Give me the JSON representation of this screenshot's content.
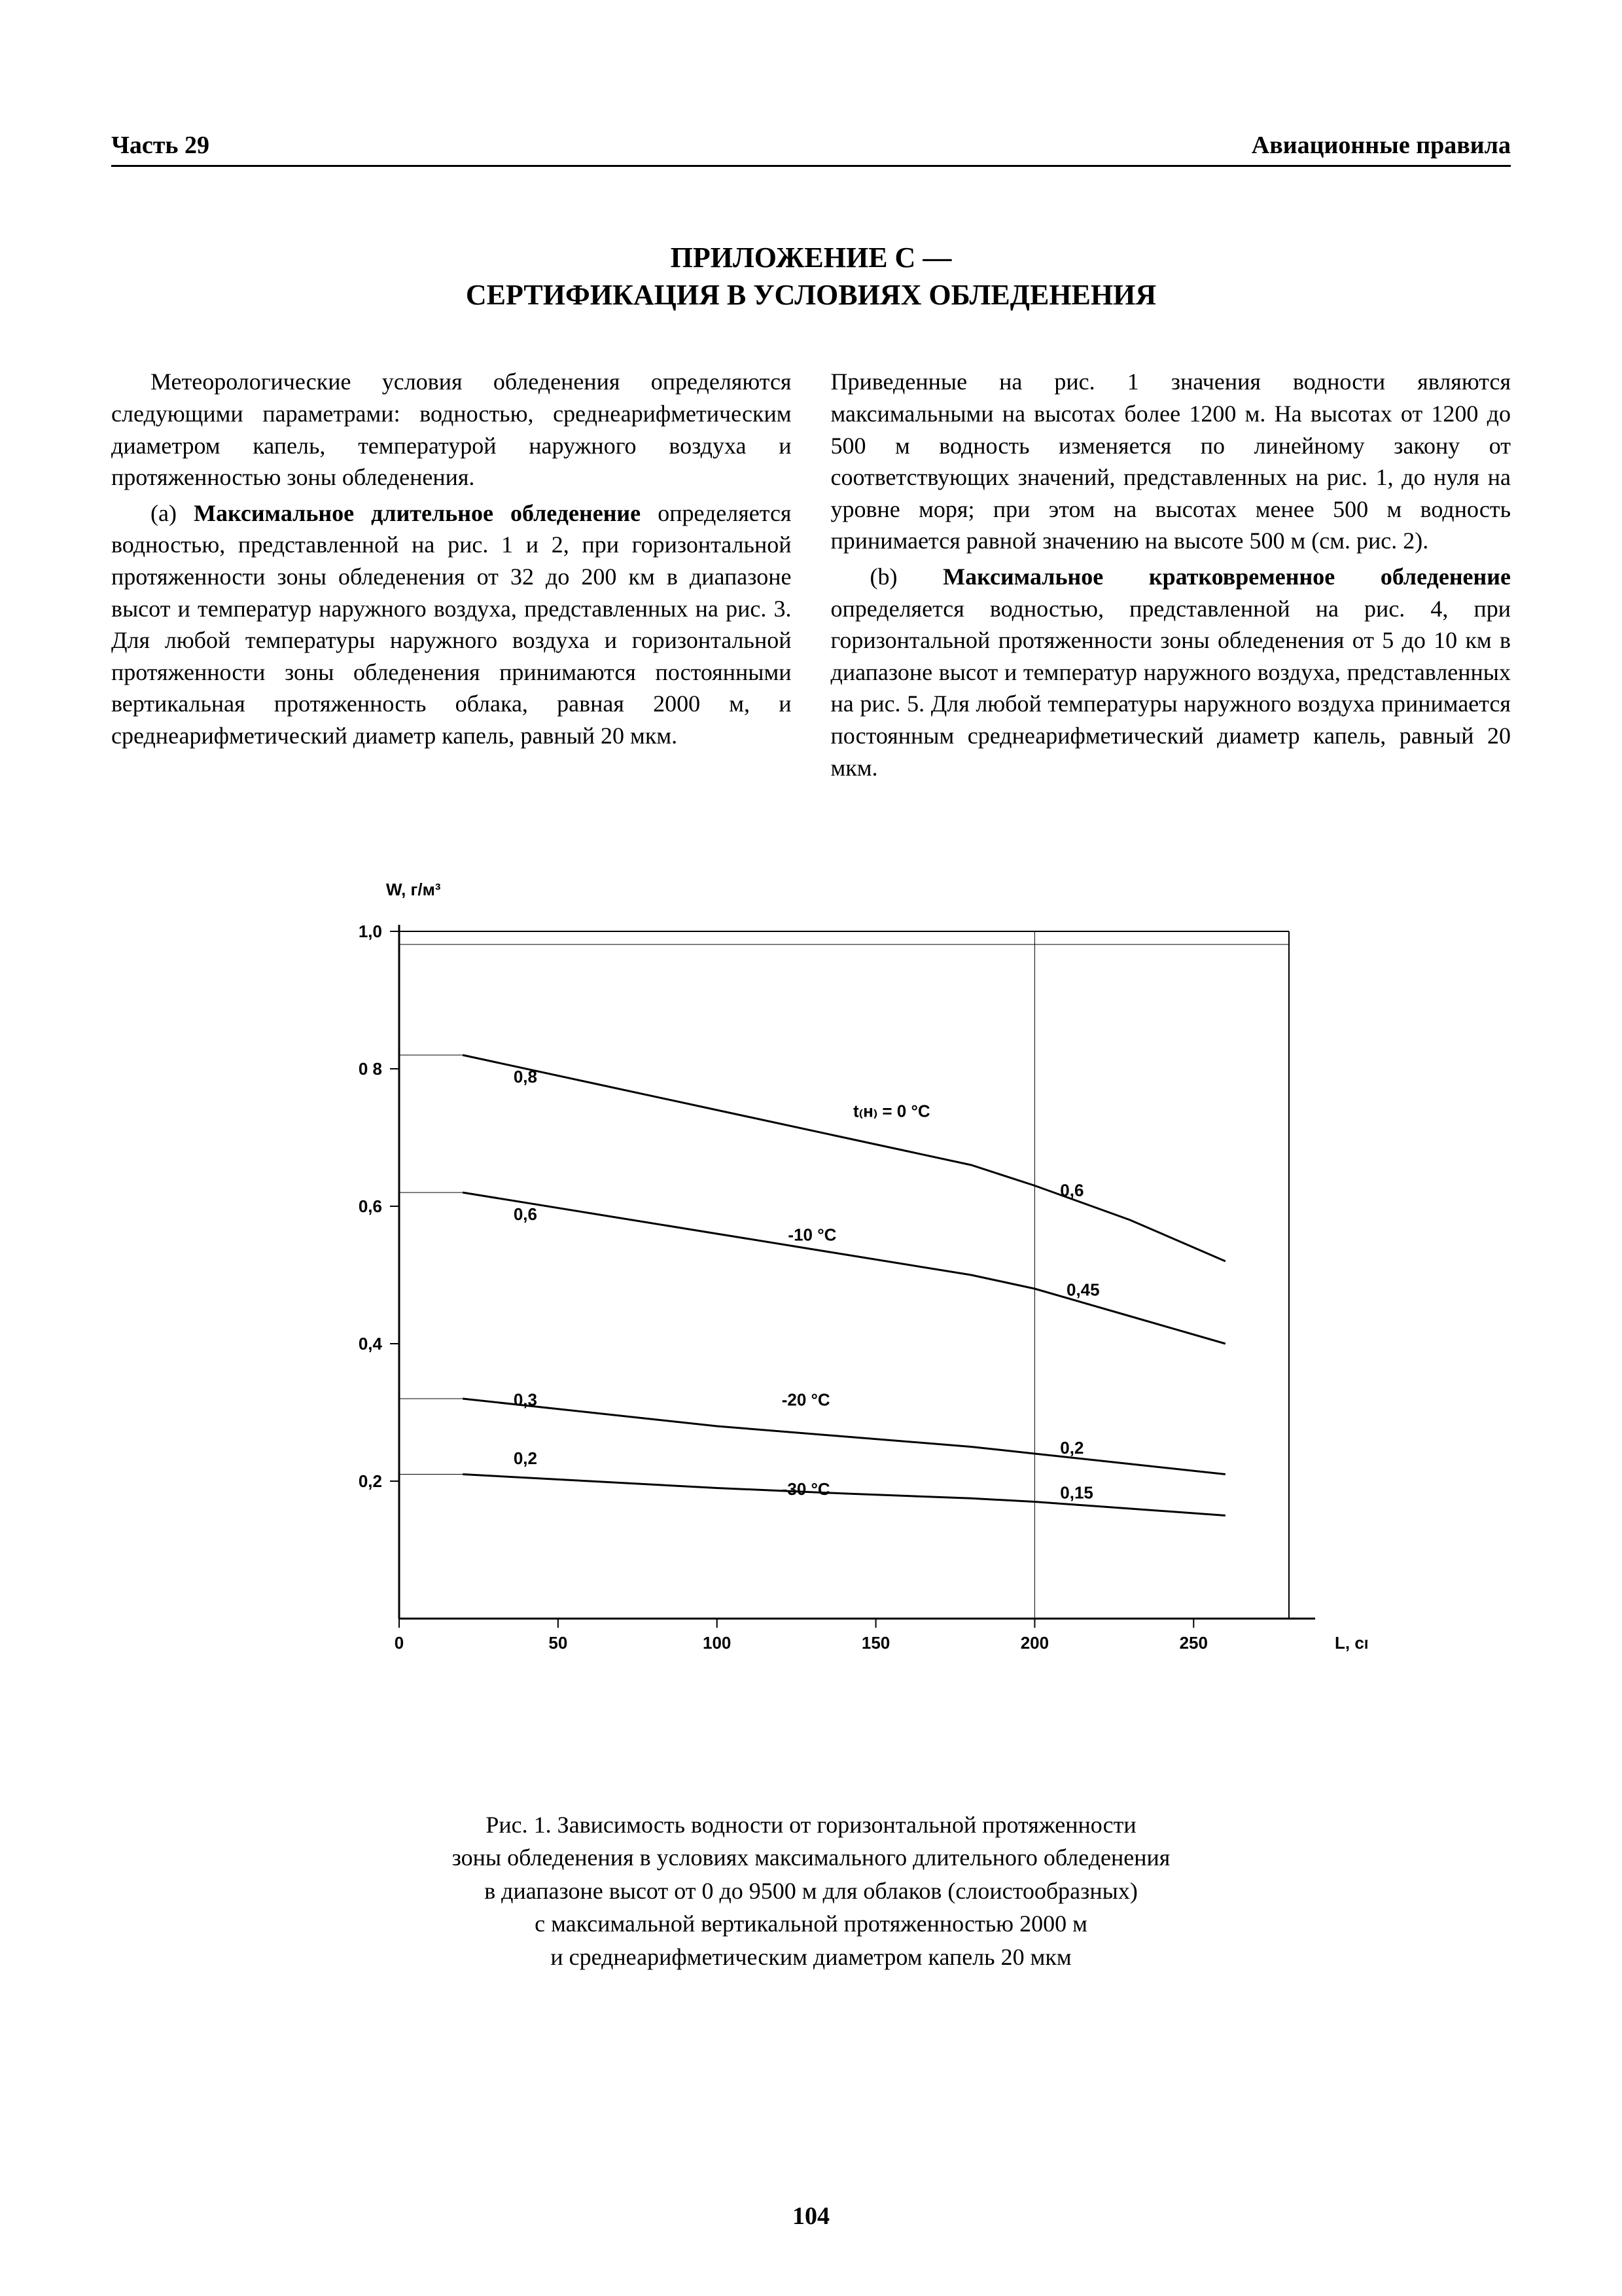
{
  "header": {
    "left": "Часть 29",
    "right": "Авиационные правила"
  },
  "title": {
    "line1": "ПРИЛОЖЕНИЕ С —",
    "line2": "СЕРТИФИКАЦИЯ В УСЛОВИЯХ ОБЛЕДЕНЕНИЯ"
  },
  "body": {
    "p1": "Метеорологические условия обледенения определяются следующими параметрами: водностью, среднеарифметическим диаметром капель, температурой наружного воздуха и протяженностью зоны обледенения.",
    "p2_lead": "(а) ",
    "p2_bold": "Максимальное длительное обледенение",
    "p2_rest": " определяется водностью, представленной на рис. 1 и 2, при горизонтальной протяженности зоны обледенения от 32 до 200 км в диапазоне высот и температур наружного воздуха, представленных на рис. 3. Для любой температуры наружного воздуха и горизонтальной протяженности зоны обледенения принимаются постоянными вертикальная протяженность облака, равная 2000 м, и среднеарифметический диаметр капель, равный 20 мкм.",
    "p3": "Приведенные на рис. 1 значения водности являются максимальными на высотах более 1200 м. На высотах от 1200 до 500 м водность изменяется по линейному закону от соответствующих значений, представленных на рис. 1, до нуля на уровне моря; при этом на высотах менее 500 м водность принимается равной значению на высоте 500 м (см. рис. 2).",
    "p4_lead": "(b) ",
    "p4_bold": "Максимальное кратковременное обледенение",
    "p4_rest": " определяется водностью, представленной на рис. 4, при горизонтальной протяженности зоны обледенения от 5 до 10 км в диапазоне высот и температур наружного воздуха, представленных на рис. 5. Для любой температуры наружного воздуха принимается постоянным среднеарифметический диаметр капель, равный 20 мкм."
  },
  "chart": {
    "type": "line",
    "y_axis_label": "W, г/м³",
    "x_axis_label": "L, см",
    "xlim": [
      0,
      280
    ],
    "ylim": [
      0,
      1.0
    ],
    "x_ticks": [
      0,
      50,
      100,
      150,
      200,
      250
    ],
    "x_tick_labels": [
      "0",
      "50",
      "100",
      "150",
      "200",
      "250"
    ],
    "y_ticks": [
      0.2,
      0.4,
      0.6,
      0.8,
      1.0
    ],
    "y_tick_labels": [
      "0,2",
      "0,4",
      "0,6",
      "0 8",
      "1,0"
    ],
    "axis_color": "#000000",
    "line_color": "#000000",
    "line_width": 3,
    "background_color": "#ffffff",
    "axis_fontsize": 26,
    "label_fontsize": 26,
    "curves": [
      {
        "name": "0C",
        "label": "t₍н₎ = 0 °С",
        "label_pos": {
          "x": 155,
          "y": 0.73
        },
        "start_label": "0,8",
        "start_label_pos": {
          "x": 36,
          "y": 0.78
        },
        "end_label": "0,6",
        "end_label_pos": {
          "x": 208,
          "y": 0.615
        },
        "points": [
          {
            "x": 20,
            "y": 0.82
          },
          {
            "x": 60,
            "y": 0.78
          },
          {
            "x": 100,
            "y": 0.74
          },
          {
            "x": 140,
            "y": 0.7
          },
          {
            "x": 180,
            "y": 0.66
          },
          {
            "x": 200,
            "y": 0.63
          },
          {
            "x": 230,
            "y": 0.58
          },
          {
            "x": 260,
            "y": 0.52
          }
        ]
      },
      {
        "name": "-10C",
        "label": "-10 °С",
        "label_pos": {
          "x": 130,
          "y": 0.55
        },
        "start_label": "0,6",
        "start_label_pos": {
          "x": 36,
          "y": 0.58
        },
        "end_label": "0,45",
        "end_label_pos": {
          "x": 210,
          "y": 0.47
        },
        "points": [
          {
            "x": 20,
            "y": 0.62
          },
          {
            "x": 60,
            "y": 0.59
          },
          {
            "x": 100,
            "y": 0.56
          },
          {
            "x": 140,
            "y": 0.53
          },
          {
            "x": 180,
            "y": 0.5
          },
          {
            "x": 200,
            "y": 0.48
          },
          {
            "x": 230,
            "y": 0.44
          },
          {
            "x": 260,
            "y": 0.4
          }
        ]
      },
      {
        "name": "-20C",
        "label": "-20 °С",
        "label_pos": {
          "x": 128,
          "y": 0.31
        },
        "start_label": "0,3",
        "start_label_pos": {
          "x": 36,
          "y": 0.31
        },
        "end_label": "0,2",
        "end_label_pos": {
          "x": 208,
          "y": 0.24
        },
        "points": [
          {
            "x": 20,
            "y": 0.32
          },
          {
            "x": 60,
            "y": 0.3
          },
          {
            "x": 100,
            "y": 0.28
          },
          {
            "x": 140,
            "y": 0.265
          },
          {
            "x": 180,
            "y": 0.25
          },
          {
            "x": 200,
            "y": 0.24
          },
          {
            "x": 230,
            "y": 0.225
          },
          {
            "x": 260,
            "y": 0.21
          }
        ]
      },
      {
        "name": "-30C",
        "label": "-30 °С",
        "label_pos": {
          "x": 128,
          "y": 0.18
        },
        "start_label": "0,2",
        "start_label_pos": {
          "x": 36,
          "y": 0.225
        },
        "end_label": "0,15",
        "end_label_pos": {
          "x": 208,
          "y": 0.175
        },
        "points": [
          {
            "x": 20,
            "y": 0.21
          },
          {
            "x": 60,
            "y": 0.2
          },
          {
            "x": 100,
            "y": 0.19
          },
          {
            "x": 140,
            "y": 0.182
          },
          {
            "x": 180,
            "y": 0.175
          },
          {
            "x": 200,
            "y": 0.17
          },
          {
            "x": 230,
            "y": 0.16
          },
          {
            "x": 260,
            "y": 0.15
          }
        ]
      }
    ]
  },
  "caption": {
    "l1": "Рис. 1. Зависимость водности от горизонтальной протяженности",
    "l2": "зоны обледенения в условиях максимального длительного обледенения",
    "l3": "в диапазоне высот от 0 до 9500 м для облаков (слоистообразных)",
    "l4": "с максимальной вертикальной протяженностью 2000 м",
    "l5": "и среднеарифметическим диаметром капель 20 мкм"
  },
  "page_number": "104"
}
